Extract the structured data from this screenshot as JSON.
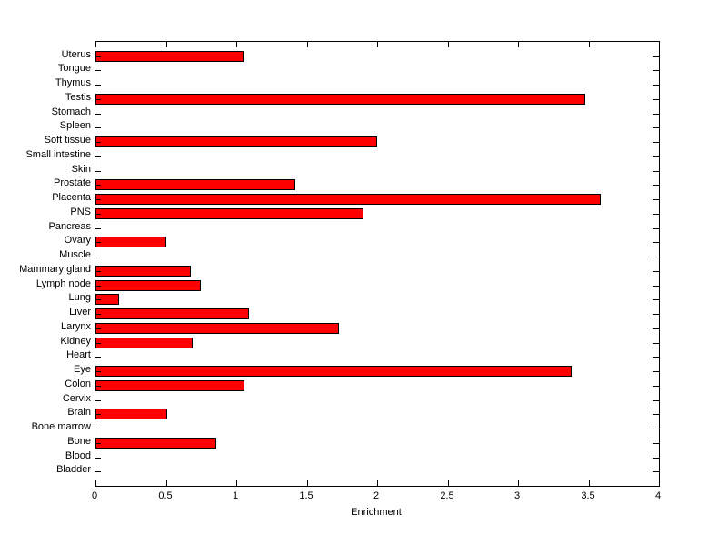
{
  "chart_data": {
    "type": "bar",
    "orientation": "horizontal",
    "title": "",
    "xlabel": "Enrichment",
    "ylabel": "",
    "xlim": [
      0,
      4
    ],
    "xticks": [
      0,
      0.5,
      1,
      1.5,
      2,
      2.5,
      3,
      3.5,
      4
    ],
    "xtick_labels": [
      "0",
      "0.5",
      "1",
      "1.5",
      "2",
      "2.5",
      "3",
      "3.5",
      "4"
    ],
    "grid": false,
    "legend": null,
    "bar_color": "#ff0000",
    "bar_edge_color": "#000000",
    "axis_color": "#000000",
    "background_color": "#ffffff",
    "categories": [
      "Uterus",
      "Tongue",
      "Thymus",
      "Testis",
      "Stomach",
      "Spleen",
      "Soft tissue",
      "Small intestine",
      "Skin",
      "Prostate",
      "Placenta",
      "PNS",
      "Pancreas",
      "Ovary",
      "Muscle",
      "Mammary gland",
      "Lymph node",
      "Lung",
      "Liver",
      "Larynx",
      "Kidney",
      "Heart",
      "Eye",
      "Colon",
      "Cervix",
      "Brain",
      "Bone marrow",
      "Bone",
      "Blood",
      "Bladder"
    ],
    "values": [
      1.05,
      0,
      0,
      3.48,
      0,
      0,
      2.0,
      0,
      0,
      1.42,
      3.59,
      1.9,
      0,
      0.5,
      0,
      0.68,
      0.75,
      0.17,
      1.09,
      1.73,
      0.69,
      0,
      3.38,
      1.06,
      0,
      0.51,
      0,
      0.86,
      0,
      0
    ]
  }
}
